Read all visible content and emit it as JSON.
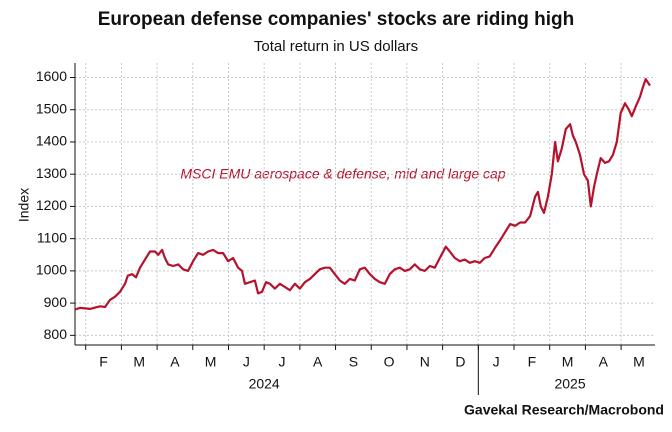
{
  "chart_data": {
    "type": "line",
    "title": "European defense companies' stocks are riding high",
    "subtitle": "Total return in US dollars",
    "y_label": "Index",
    "source": "Gavekal Research/Macrobond",
    "annotation": "MSCI EMU aerospace & defense, mid and large cap",
    "xlim": [
      0.7,
      16.95
    ],
    "ylim": [
      770,
      1645
    ],
    "yticks": [
      800,
      900,
      1000,
      1100,
      1200,
      1300,
      1400,
      1500,
      1600
    ],
    "xticks": [
      {
        "value": 1.5,
        "label": "F"
      },
      {
        "value": 2.5,
        "label": "M"
      },
      {
        "value": 3.5,
        "label": "A"
      },
      {
        "value": 4.5,
        "label": "M"
      },
      {
        "value": 5.5,
        "label": "J"
      },
      {
        "value": 6.5,
        "label": "J"
      },
      {
        "value": 7.5,
        "label": "A"
      },
      {
        "value": 8.5,
        "label": "S"
      },
      {
        "value": 9.5,
        "label": "O"
      },
      {
        "value": 10.5,
        "label": "N"
      },
      {
        "value": 11.5,
        "label": "D"
      },
      {
        "value": 12.5,
        "label": "J"
      },
      {
        "value": 13.5,
        "label": "F"
      },
      {
        "value": 14.5,
        "label": "M"
      },
      {
        "value": 15.5,
        "label": "A"
      },
      {
        "value": 16.5,
        "label": "M"
      }
    ],
    "x_grid": [
      1,
      2,
      3,
      4,
      5,
      6,
      7,
      8,
      9,
      10,
      11,
      12,
      13,
      14,
      15,
      16
    ],
    "year_separators": [
      12
    ],
    "year_labels": [
      {
        "value": 6,
        "label": "2024"
      },
      {
        "value": 14.57,
        "label": "2025"
      }
    ],
    "grid": true,
    "series": [
      {
        "name": "MSCI EMU aerospace & defense, mid and large cap",
        "color": "#b5122e",
        "x": [
          0.7,
          0.84,
          1.12,
          1.4,
          1.54,
          1.68,
          1.82,
          1.96,
          2.1,
          2.18,
          2.3,
          2.41,
          2.52,
          2.66,
          2.8,
          2.94,
          3.03,
          3.14,
          3.22,
          3.31,
          3.45,
          3.59,
          3.73,
          3.87,
          4.01,
          4.15,
          4.29,
          4.43,
          4.57,
          4.71,
          4.85,
          4.99,
          5.13,
          5.27,
          5.38,
          5.46,
          5.6,
          5.74,
          5.83,
          5.94,
          6.05,
          6.16,
          6.3,
          6.44,
          6.58,
          6.72,
          6.86,
          7.0,
          7.14,
          7.28,
          7.42,
          7.56,
          7.7,
          7.84,
          7.98,
          8.12,
          8.26,
          8.4,
          8.54,
          8.68,
          8.82,
          8.96,
          9.1,
          9.24,
          9.38,
          9.52,
          9.66,
          9.8,
          9.94,
          10.08,
          10.22,
          10.36,
          10.5,
          10.64,
          10.78,
          10.92,
          11.09,
          11.2,
          11.34,
          11.48,
          11.62,
          11.76,
          11.9,
          12.04,
          12.18,
          12.32,
          12.46,
          12.61,
          12.75,
          12.89,
          13.03,
          13.17,
          13.31,
          13.45,
          13.59,
          13.67,
          13.75,
          13.84,
          13.95,
          14.06,
          14.15,
          14.23,
          14.34,
          14.45,
          14.57,
          14.65,
          14.73,
          14.85,
          14.96,
          15.07,
          15.15,
          15.24,
          15.32,
          15.43,
          15.55,
          15.66,
          15.77,
          15.88,
          15.99,
          16.11,
          16.22,
          16.3,
          16.41,
          16.53,
          16.61,
          16.69,
          16.81
        ],
        "values": [
          880,
          885,
          882,
          890,
          888,
          910,
          920,
          935,
          960,
          985,
          990,
          980,
          1010,
          1035,
          1060,
          1060,
          1050,
          1065,
          1040,
          1020,
          1015,
          1020,
          1005,
          1000,
          1030,
          1055,
          1050,
          1060,
          1065,
          1055,
          1055,
          1030,
          1040,
          1010,
          1000,
          960,
          965,
          970,
          930,
          935,
          965,
          960,
          945,
          960,
          950,
          940,
          960,
          945,
          965,
          975,
          990,
          1005,
          1010,
          1010,
          990,
          970,
          960,
          975,
          970,
          1005,
          1010,
          990,
          975,
          965,
          960,
          990,
          1005,
          1010,
          1000,
          1005,
          1020,
          1005,
          1000,
          1015,
          1010,
          1040,
          1075,
          1060,
          1040,
          1030,
          1035,
          1025,
          1030,
          1025,
          1040,
          1045,
          1070,
          1095,
          1120,
          1145,
          1140,
          1150,
          1150,
          1170,
          1230,
          1245,
          1200,
          1180,
          1230,
          1300,
          1400,
          1340,
          1380,
          1440,
          1455,
          1420,
          1400,
          1360,
          1300,
          1280,
          1200,
          1260,
          1300,
          1350,
          1335,
          1340,
          1360,
          1400,
          1490,
          1520,
          1500,
          1480,
          1510,
          1540,
          1570,
          1595,
          1575
        ]
      }
    ]
  }
}
